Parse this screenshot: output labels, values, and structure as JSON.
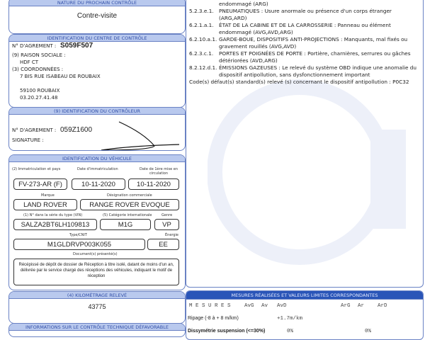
{
  "next_control": {
    "header": "NATURE DU PROCHAIN CONTRÔLE",
    "value": "Contre-visite"
  },
  "centre": {
    "header": "IDENTIFICATION DU CENTRE DE CONTRÔLE",
    "agrement_label": "N° D'AGREMENT :",
    "agrement": "S059F507",
    "raison_label": "(9) RAISON SOCIALE :",
    "raison": "HDF CT",
    "coord_label": "(3) COORDONNÉES :",
    "address": "7 BIS RUE ISABEAU DE ROUBAIX",
    "city": "59100 ROUBAIX",
    "phone": "03.20.27.41.48"
  },
  "controleur": {
    "header": "(9) IDENTIFICATION DU CONTRÔLEUR",
    "agrement_label": "N° D'AGREMENT :",
    "agrement": "059Z1600",
    "signature_label": "SIGNATURE :"
  },
  "vehicle": {
    "header": "IDENTIFICATION DU VÉHICULE",
    "immat_label": "(2) Immatriculation et pays",
    "immat": "FV-273-AR (F)",
    "date_immat_label": "Date d'immatriculation",
    "date_immat": "10-11-2020",
    "date_first_label": "Date de 1ère mise en circulation",
    "date_first": "10-11-2020",
    "marque_label": "Marque",
    "marque": "LAND ROVER",
    "designation_label": "Désignation commerciale",
    "designation": "RANGE ROVER EVOQUE",
    "vin_label": "(1) N° dans la série du type (VIN)",
    "vin": "SALZA2BT6LH109813",
    "categorie_label": "(5) Catégorie internationale",
    "categorie": "M1G",
    "genre_label": "Genre",
    "genre": "VP",
    "type_label": "Type/CNIT",
    "type": "M1GLDRVP003K055",
    "energie_label": "Énergie",
    "energie": "EE",
    "documents_label": "Document(s) présenté(s)",
    "documents": "Récépissé de dépôt de dossier de Réception à titre isolé, datant de moins d'un an, délivrée par le service chargé des réceptions des véhicules, indiquant le motif de réception"
  },
  "km": {
    "header": "(4) KILOMÉTRAGE RELEVÉ",
    "value": "43775"
  },
  "info_header": "INFORMATIONS SUR LE CONTRÔLE TECHNIQUE DÉFAVORABLE",
  "defects": [
    {
      "code": "",
      "text": "endommagé (ARG)"
    },
    {
      "code": "5.2.3.e.1.",
      "text": "PNEUMATIQUES : Usure anormale ou présence d'un corps étranger",
      "text2": "(ARG,ARD)"
    },
    {
      "code": "6.2.1.a.1.",
      "text": "ÉTAT DE LA CABINE ET DE LA CARROSSERIE : Panneau ou élément",
      "text2": "endommagé (AVG,AVD,ARG)"
    },
    {
      "code": "6.2.10.a.1.",
      "text": "GARDE-BOUE, DISPOSITIFS ANTI-PROJECTIONS : Manquants, mal fixés ou",
      "text2": "gravement rouillés (AVG,AVD)"
    },
    {
      "code": "6.2.3.c.1.",
      "text": "PORTES ET POIGNÉES DE PORTE : Portière, charnières, serrures ou gâches",
      "text2": "détériorées (AVD,ARG)"
    },
    {
      "code": "8.2.12.d.1.",
      "text": "ÉMISSIONS GAZEUSES : Le relevé du système OBD indique une anomalie du",
      "text2": "dispositif antipollution, sans dysfonctionnement important"
    }
  ],
  "obd_codes": "Code(s) défaut(s) standard(s) relevé (s) concernant le dispositif antipollution : P0C32",
  "measures": {
    "header": "MESURES RÉALISÉES ET VALEURS LIMITES CORRESPONDANTES",
    "title": "M E S U R E S",
    "cols": [
      "AvG",
      "Av",
      "AvD",
      "ArG",
      "Ar",
      "ArD"
    ],
    "ripage_label": "Ripage (-8 à + 8 m/km)",
    "ripage_value": "+1.7m/km",
    "dissym_label": "Dissymétrie suspension (<=30%)",
    "dissym_av": "0%",
    "dissym_ar": "0%"
  }
}
